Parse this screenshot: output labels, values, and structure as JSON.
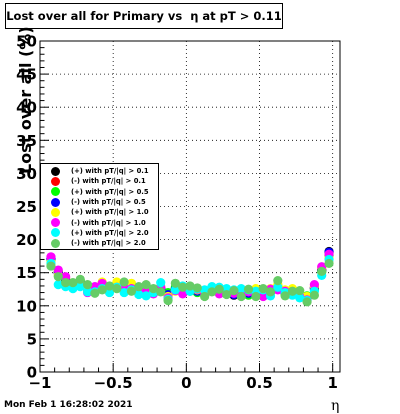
{
  "chart_data": {
    "type": "scatter",
    "title": "Lost over all for Primary vs  η at pT > 0.11",
    "title_parts": [
      "Lost over all for Primary vs",
      "η at pT > 0.11"
    ],
    "xlabel": "η",
    "ylabel": "Lost over all (%)",
    "xlim": [
      -1,
      1.05
    ],
    "ylim": [
      0,
      50
    ],
    "x_ticks": [
      -1,
      -0.5,
      0,
      0.5,
      1
    ],
    "x_tick_labels": [
      "−1",
      "−0.5",
      "0",
      "0.5",
      "1"
    ],
    "y_ticks": [
      0,
      5,
      10,
      15,
      20,
      25,
      30,
      35,
      40,
      45,
      50
    ],
    "y_tick_labels": [
      "0",
      "5",
      "10",
      "15",
      "20",
      "25",
      "30",
      "35",
      "40",
      "45",
      "50"
    ],
    "grid": true,
    "legend_position": "left-middle",
    "x": [
      -0.925,
      -0.875,
      -0.825,
      -0.775,
      -0.725,
      -0.675,
      -0.625,
      -0.575,
      -0.525,
      -0.475,
      -0.425,
      -0.375,
      -0.325,
      -0.275,
      -0.225,
      -0.175,
      -0.125,
      -0.075,
      -0.025,
      0.025,
      0.075,
      0.125,
      0.175,
      0.225,
      0.275,
      0.325,
      0.375,
      0.425,
      0.475,
      0.525,
      0.575,
      0.625,
      0.675,
      0.725,
      0.775,
      0.825,
      0.875,
      0.925,
      0.975
    ],
    "series": [
      {
        "name": "(+) with pT/|q| > 0.1",
        "color": "#000000",
        "values": [
          17.2,
          15.0,
          13.8,
          13.0,
          13.6,
          12.6,
          12.4,
          13.0,
          12.5,
          13.2,
          12.4,
          13.0,
          12.1,
          12.6,
          12.2,
          12.5,
          11.8,
          12.6,
          12.2,
          12.4,
          12.1,
          12.0,
          12.4,
          12.2,
          12.0,
          11.6,
          12.0,
          11.8,
          12.2,
          11.8,
          12.2,
          12.8,
          11.9,
          12.2,
          11.8,
          11.3,
          12.6,
          15.3,
          18.2
        ]
      },
      {
        "name": "(-) with pT/|q| > 0.1",
        "color": "#ff0000",
        "values": [
          17.0,
          15.1,
          14.2,
          13.1,
          13.4,
          12.4,
          12.6,
          13.2,
          12.7,
          13.0,
          12.6,
          12.8,
          12.3,
          12.4,
          12.0,
          12.7,
          11.6,
          12.4,
          12.0,
          12.6,
          12.3,
          11.8,
          12.6,
          12.0,
          12.2,
          11.8,
          11.8,
          12.0,
          12.0,
          11.6,
          12.4,
          12.6,
          12.1,
          12.0,
          11.6,
          11.1,
          12.8,
          15.5,
          18.0
        ]
      },
      {
        "name": "(+) with pT/|q| > 0.5",
        "color": "#00ff00",
        "values": [
          16.8,
          15.2,
          13.9,
          13.3,
          13.8,
          12.9,
          12.2,
          12.8,
          12.6,
          13.4,
          12.2,
          13.2,
          12.4,
          12.8,
          12.5,
          12.3,
          12.0,
          12.8,
          12.4,
          12.2,
          12.0,
          12.2,
          12.2,
          12.4,
          11.8,
          11.8,
          12.2,
          11.6,
          12.4,
          12.0,
          12.0,
          13.0,
          11.7,
          12.4,
          11.9,
          11.5,
          12.4,
          15.1,
          17.6
        ]
      },
      {
        "name": "(-) with pT/|q| > 0.5",
        "color": "#0000ff",
        "values": [
          17.1,
          14.9,
          13.6,
          12.9,
          13.5,
          12.5,
          12.7,
          13.1,
          12.4,
          13.1,
          12.5,
          12.9,
          12.2,
          12.5,
          12.1,
          12.6,
          11.7,
          12.5,
          12.1,
          12.5,
          12.2,
          11.9,
          12.5,
          12.1,
          12.1,
          11.7,
          11.9,
          11.9,
          12.1,
          11.7,
          12.3,
          12.7,
          12.0,
          12.1,
          11.7,
          11.2,
          12.7,
          15.4,
          18.1
        ]
      },
      {
        "name": "(+) with pT/|q| > 1.0",
        "color": "#ffff00",
        "values": [
          16.6,
          14.6,
          13.4,
          12.8,
          13.2,
          12.2,
          12.8,
          13.6,
          12.8,
          13.6,
          12.8,
          13.4,
          12.6,
          12.2,
          12.4,
          12.9,
          11.4,
          12.2,
          12.6,
          12.8,
          12.4,
          12.2,
          12.8,
          12.6,
          12.4,
          12.0,
          12.4,
          12.2,
          12.6,
          12.2,
          12.6,
          13.2,
          12.4,
          12.6,
          12.0,
          11.4,
          13.0,
          15.8,
          17.2
        ]
      },
      {
        "name": "(-) with pT/|q| > 1.0",
        "color": "#ff00ff",
        "values": [
          17.4,
          15.4,
          14.4,
          13.2,
          13.0,
          12.0,
          12.9,
          13.4,
          12.9,
          12.8,
          12.7,
          12.6,
          12.5,
          12.1,
          11.8,
          12.8,
          11.2,
          12.3,
          11.8,
          12.7,
          12.5,
          11.6,
          12.7,
          11.8,
          12.3,
          11.9,
          11.6,
          12.1,
          11.8,
          11.4,
          12.5,
          12.4,
          12.2,
          11.8,
          11.4,
          10.9,
          13.2,
          15.9,
          17.8
        ]
      },
      {
        "name": "(+) with pT/|q| > 2.0",
        "color": "#00ffff",
        "values": [
          16.4,
          13.2,
          12.9,
          12.6,
          12.9,
          12.1,
          12.1,
          12.6,
          12.0,
          12.8,
          12.0,
          12.4,
          11.7,
          11.5,
          12.0,
          13.5,
          11.0,
          12.4,
          13.0,
          12.2,
          12.6,
          12.4,
          12.9,
          12.8,
          12.6,
          12.4,
          12.6,
          12.4,
          12.2,
          12.4,
          11.5,
          12.8,
          12.0,
          11.6,
          11.2,
          10.8,
          12.2,
          14.6,
          17.0
        ]
      },
      {
        "name": "(-) with pT/|q| > 2.0",
        "color": "#66cc66",
        "values": [
          16.0,
          14.4,
          13.5,
          13.5,
          14.0,
          13.2,
          11.9,
          12.4,
          13.0,
          12.6,
          13.6,
          12.2,
          12.9,
          13.2,
          12.6,
          12.1,
          10.8,
          13.4,
          12.8,
          13.0,
          12.7,
          11.4,
          12.1,
          12.5,
          11.7,
          12.3,
          11.4,
          12.5,
          11.4,
          12.6,
          12.1,
          13.8,
          11.5,
          12.2,
          12.3,
          10.6,
          11.6,
          15.2,
          16.4
        ]
      }
    ]
  },
  "timestamp": "Mon Feb  1 16:28:02 2021"
}
